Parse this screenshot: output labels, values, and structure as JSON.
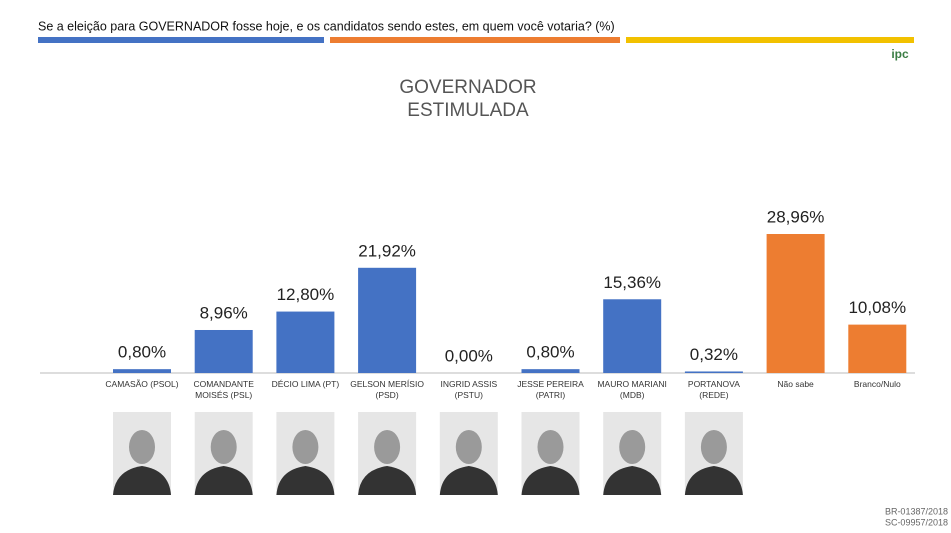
{
  "header": {
    "question": "Se a eleição para GOVERNADOR fosse hoje, e os candidatos sendo estes, em quem você votaria? (%)",
    "logo": "ipc"
  },
  "chart_data": {
    "type": "bar",
    "title": "GOVERNADOR",
    "subtitle": "ESTIMULADA",
    "categories": [
      "CAMASÃO (PSOL)",
      "COMANDANTE MOISÉS (PSL)",
      "DÉCIO LIMA (PT)",
      "GELSON MERÍSIO (PSD)",
      "INGRID ASSIS (PSTU)",
      "JESSE PEREIRA (PATRI)",
      "MAURO MARIANI (MDB)",
      "PORTANOVA (REDE)",
      "Não sabe",
      "Branco/Nulo"
    ],
    "values": [
      0.8,
      8.96,
      12.8,
      21.92,
      0,
      0.8,
      15.36,
      0.32,
      28.96,
      10.08
    ],
    "value_labels": [
      "0,80%",
      "8,96%",
      "12,80%",
      "21,92%",
      "0,00%",
      "0,80%",
      "15,36%",
      "0,32%",
      "28,96%",
      "10,08%"
    ],
    "colors": [
      "#4472c4",
      "#4472c4",
      "#4472c4",
      "#4472c4",
      "#4472c4",
      "#4472c4",
      "#4472c4",
      "#4472c4",
      "#ed7d31",
      "#ed7d31"
    ]
  },
  "footer": {
    "codes": [
      "BR-01387/2018",
      "SC-09957/2018"
    ]
  }
}
